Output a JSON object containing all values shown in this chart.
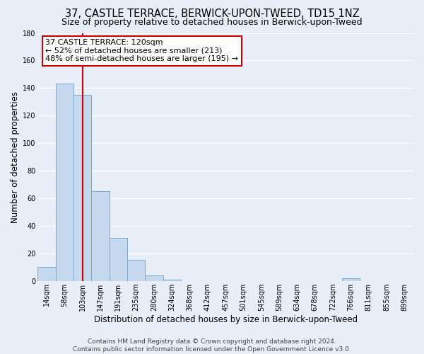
{
  "title": "37, CASTLE TERRACE, BERWICK-UPON-TWEED, TD15 1NZ",
  "subtitle": "Size of property relative to detached houses in Berwick-upon-Tweed",
  "xlabel": "Distribution of detached houses by size in Berwick-upon-Tweed",
  "ylabel": "Number of detached properties",
  "bar_labels": [
    "14sqm",
    "58sqm",
    "103sqm",
    "147sqm",
    "191sqm",
    "235sqm",
    "280sqm",
    "324sqm",
    "368sqm",
    "412sqm",
    "457sqm",
    "501sqm",
    "545sqm",
    "589sqm",
    "634sqm",
    "678sqm",
    "722sqm",
    "766sqm",
    "811sqm",
    "855sqm",
    "899sqm"
  ],
  "bar_values": [
    10,
    143,
    135,
    65,
    31,
    15,
    4,
    1,
    0,
    0,
    0,
    0,
    0,
    0,
    0,
    0,
    0,
    2,
    0,
    0,
    0
  ],
  "bar_color": "#c5d8ee",
  "bar_edge_color": "#7aaacf",
  "vline_x_index": 2,
  "vline_color": "#cc0000",
  "ylim": [
    0,
    180
  ],
  "yticks": [
    0,
    20,
    40,
    60,
    80,
    100,
    120,
    140,
    160,
    180
  ],
  "annotation_text": "37 CASTLE TERRACE: 120sqm\n← 52% of detached houses are smaller (213)\n48% of semi-detached houses are larger (195) →",
  "annotation_box_color": "#ffffff",
  "annotation_box_edge": "#cc0000",
  "footer_text": "Contains HM Land Registry data © Crown copyright and database right 2024.\nContains public sector information licensed under the Open Government Licence v3.0.",
  "background_color": "#e8eef8",
  "plot_bg_color": "#e8eef8",
  "grid_color": "#ffffff",
  "title_fontsize": 10.5,
  "subtitle_fontsize": 9,
  "axis_label_fontsize": 8.5,
  "tick_fontsize": 7,
  "annotation_fontsize": 8,
  "footer_fontsize": 6.5
}
